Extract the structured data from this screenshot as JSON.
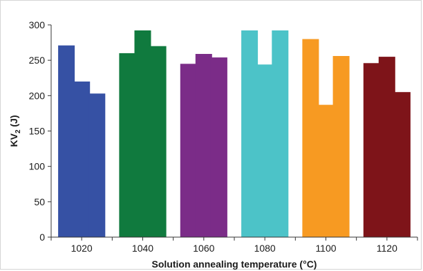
{
  "chart_data": {
    "type": "bar",
    "title": "",
    "xlabel": "Solution annealing temperature (°C)",
    "ylabel_main": "KV",
    "ylabel_sub": "2",
    "ylabel_unit": " (J)",
    "ylim": [
      0,
      300
    ],
    "yticks": [
      0,
      50,
      100,
      150,
      200,
      250,
      300
    ],
    "xlim": [
      1010,
      1130
    ],
    "xticks": [
      1020,
      1040,
      1060,
      1080,
      1100,
      1120
    ],
    "grid": false,
    "legend": "none",
    "groups": [
      {
        "color": "#3651A4",
        "x": [
          1015,
          1020,
          1025
        ],
        "values": [
          271,
          220,
          203
        ]
      },
      {
        "color": "#107A3E",
        "x": [
          1035,
          1040,
          1045
        ],
        "values": [
          260,
          294,
          270
        ]
      },
      {
        "color": "#7B2C88",
        "x": [
          1055,
          1060,
          1065
        ],
        "values": [
          245,
          259,
          254
        ]
      },
      {
        "color": "#4CC3C8",
        "x": [
          1075,
          1080,
          1085
        ],
        "values": [
          301,
          244,
          301
        ]
      },
      {
        "color": "#F79A22",
        "x": [
          1095,
          1100,
          1105
        ],
        "values": [
          280,
          187,
          256
        ]
      },
      {
        "color": "#7E1419",
        "x": [
          1115,
          1120,
          1125
        ],
        "values": [
          246,
          255,
          205
        ]
      }
    ]
  }
}
